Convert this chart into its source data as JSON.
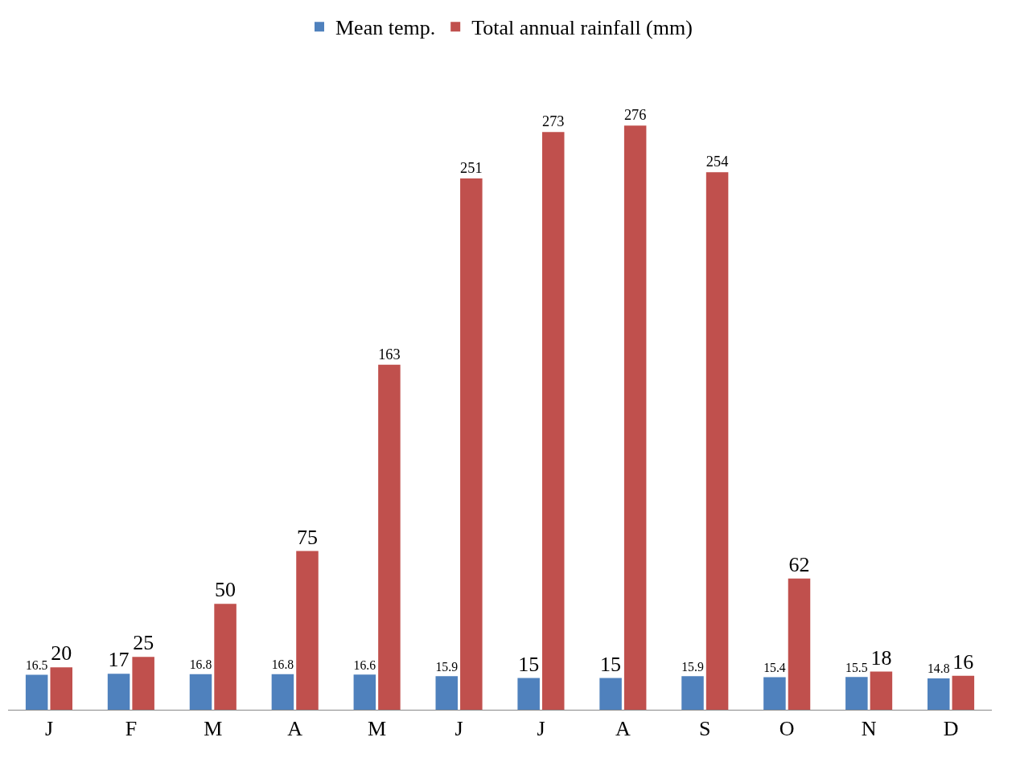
{
  "chart_data": {
    "type": "bar",
    "categories": [
      "J",
      "F",
      "M",
      "A",
      "M",
      "J",
      "J",
      "A",
      "S",
      "O",
      "N",
      "D"
    ],
    "series": [
      {
        "name": "Mean temp.",
        "color": "#4f81bd",
        "values": [
          16.5,
          17,
          16.8,
          16.8,
          16.6,
          15.9,
          15,
          15,
          15.9,
          15.4,
          15.5,
          14.8
        ]
      },
      {
        "name": "Total annual rainfall (mm)",
        "color": "#c0504d",
        "values": [
          20,
          25,
          50,
          75,
          163,
          251,
          273,
          276,
          254,
          62,
          18,
          16
        ]
      }
    ],
    "data_labels": true,
    "legend": "top",
    "grid": false
  }
}
